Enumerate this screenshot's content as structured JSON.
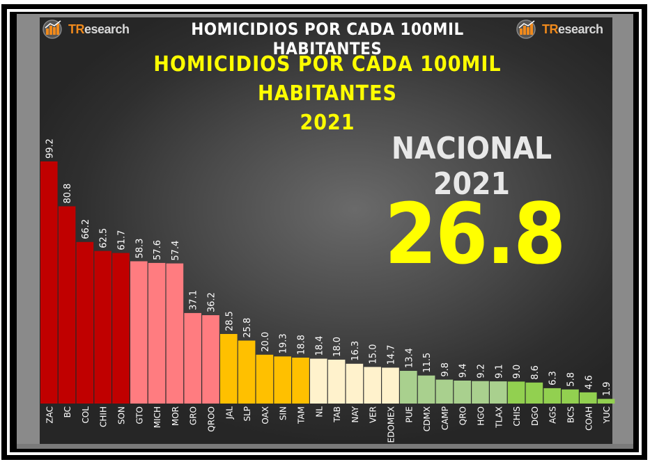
{
  "header": {
    "top_title": "HOMICIDIOS POR CADA 100MIL HABITANTES",
    "logo_text_tr": "TR",
    "logo_text_rest": "esearch"
  },
  "colors": {
    "dark_red": "#c00000",
    "salmon": "#ff7c80",
    "orange": "#ffc000",
    "cream": "#fff2cc",
    "light_green": "#a9d08e",
    "green": "#92d050",
    "title_yellow": "#ffff00"
  },
  "nacional": {
    "label": "NACIONAL 2021",
    "value": "26.8"
  },
  "chart_data": {
    "type": "bar",
    "title": "HOMICIDIOS POR CADA 100MIL HABITANTES",
    "subtitle": "2021",
    "xlabel": "",
    "ylabel": "",
    "ylim": [
      0,
      100
    ],
    "grid": false,
    "categories": [
      "ZAC",
      "BC",
      "COL",
      "CHIH",
      "SON",
      "GTO",
      "MICH",
      "MOR",
      "GRO",
      "QROO",
      "JAL",
      "SLP",
      "OAX",
      "SIN",
      "TAM",
      "NL",
      "TAB",
      "NAY",
      "VER",
      "EDOMEX",
      "PUE",
      "CDMX",
      "CAMP",
      "QRO",
      "HGO",
      "TLAX",
      "CHIS",
      "DGO",
      "AGS",
      "BCS",
      "COAH",
      "YUC"
    ],
    "values": [
      99.2,
      80.8,
      66.2,
      62.5,
      61.7,
      58.3,
      57.6,
      57.4,
      37.1,
      36.2,
      28.5,
      25.8,
      20.0,
      19.3,
      18.8,
      18.4,
      18.0,
      16.3,
      15.0,
      14.7,
      13.4,
      11.5,
      9.8,
      9.4,
      9.2,
      9.1,
      9.0,
      8.6,
      6.3,
      5.8,
      4.6,
      1.9
    ],
    "value_labels": [
      "99.2",
      "80.8",
      "66.2",
      "62.5",
      "61.7",
      "58.3",
      "57.6",
      "57.4",
      "37.1",
      "36.2",
      "28.5",
      "25.8",
      "20.0",
      "19.3",
      "18.8",
      "18.4",
      "18.0",
      "16.3",
      "15.0",
      "14.7",
      "13.4",
      "11.5",
      "9.8",
      "9.4",
      "9.2",
      "9.1",
      "9.0",
      "8.6",
      "6.3",
      "5.8",
      "4.6",
      "1.9"
    ],
    "bar_colors": [
      "#c00000",
      "#c00000",
      "#c00000",
      "#c00000",
      "#c00000",
      "#ff7c80",
      "#ff7c80",
      "#ff7c80",
      "#ff7c80",
      "#ff7c80",
      "#ffc000",
      "#ffc000",
      "#ffc000",
      "#ffc000",
      "#ffc000",
      "#fff2cc",
      "#fff2cc",
      "#fff2cc",
      "#fff2cc",
      "#fff2cc",
      "#a9d08e",
      "#a9d08e",
      "#a9d08e",
      "#a9d08e",
      "#a9d08e",
      "#a9d08e",
      "#92d050",
      "#92d050",
      "#92d050",
      "#92d050",
      "#92d050",
      "#92d050"
    ]
  }
}
